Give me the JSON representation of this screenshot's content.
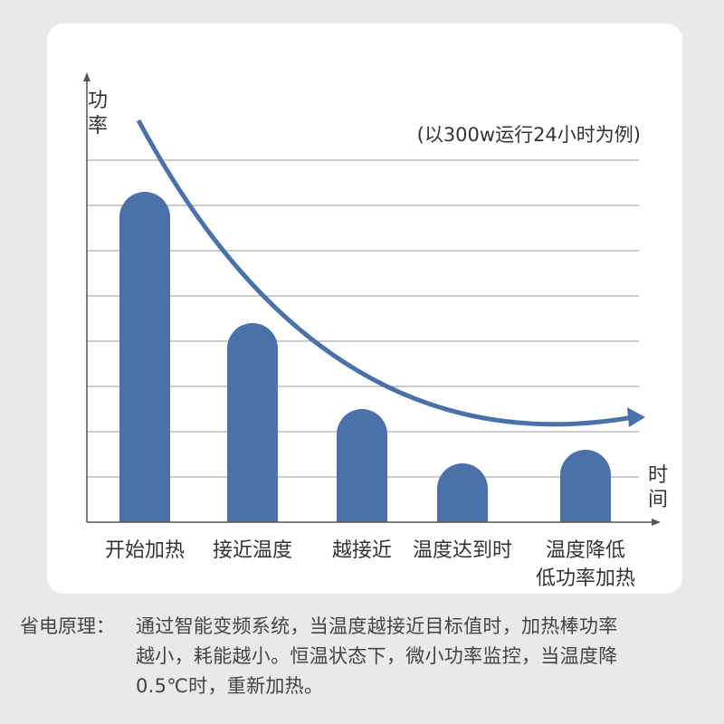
{
  "colors": {
    "bar": "#4a72a8",
    "curve": "#4a72a8",
    "axis": "#555555",
    "grid": "#999999",
    "text": "#333333",
    "background": "#e9e9e9",
    "card": "#ffffff"
  },
  "chart_data": {
    "type": "bar",
    "title": "",
    "subtitle": "(以300w运行24小时为例)",
    "ylabel": "功率",
    "xlabel": "时间",
    "categories": [
      "开始加热",
      "接近温度",
      "越接近",
      "温度达到时",
      "温度降低\n低功率加热"
    ],
    "category_lines": [
      [
        "开始加热"
      ],
      [
        "接近温度"
      ],
      [
        "越接近"
      ],
      [
        "温度达到时"
      ],
      [
        "温度降低",
        "低功率加热"
      ]
    ],
    "values": [
      7.3,
      4.4,
      2.5,
      1.3,
      1.6
    ],
    "ylim": [
      0,
      8
    ],
    "grid": true,
    "trend_arrow": "decreasing curve"
  },
  "note": {
    "label": "省电原理：",
    "lines": [
      "通过智能变频系统，当温度越接近目标值时，加热棒功率",
      "越小，耗能越小。恒温状态下，微小功率监控，当温度降",
      "0.5℃时，重新加热。"
    ]
  }
}
